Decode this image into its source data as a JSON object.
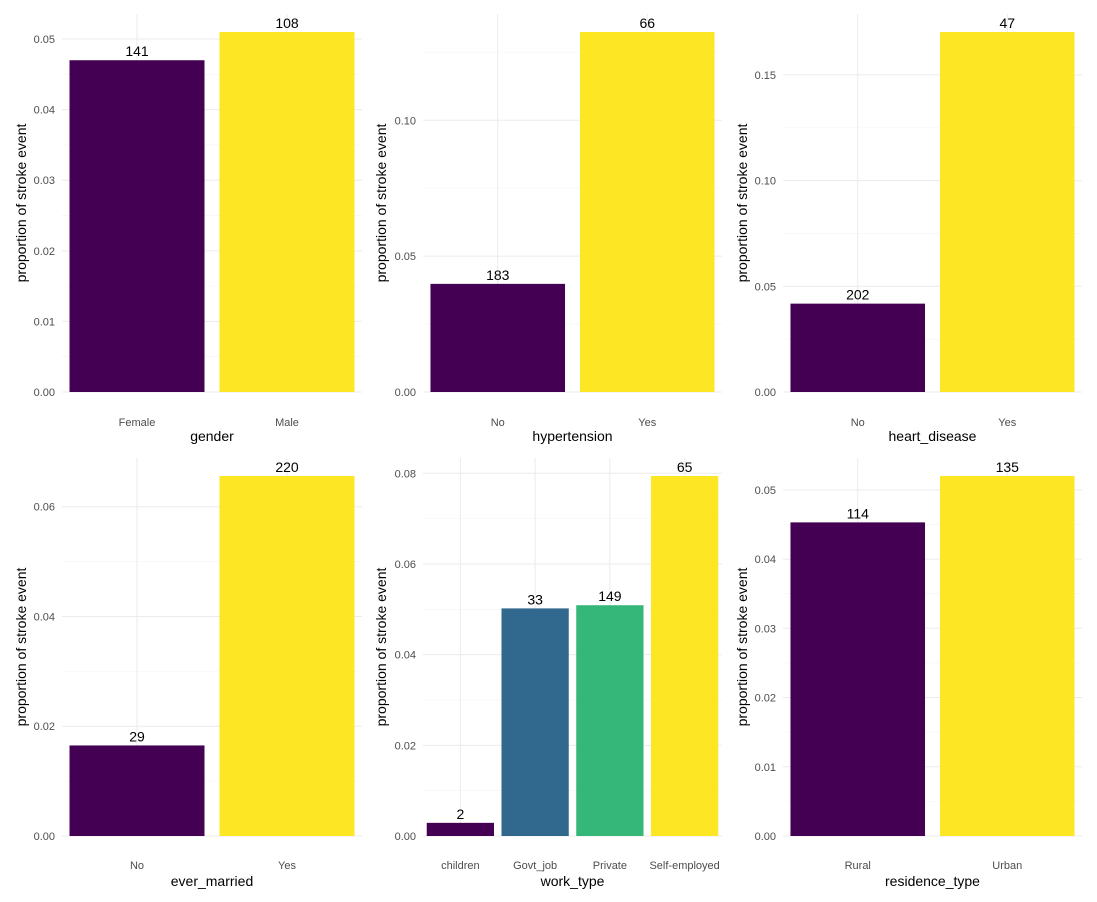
{
  "chart_data": [
    {
      "type": "bar",
      "xlabel": "gender",
      "ylabel": "proportion of stroke event",
      "categories": [
        "Female",
        "Male"
      ],
      "values": [
        0.047,
        0.051
      ],
      "labels": [
        "141",
        "108"
      ],
      "colors": [
        "#440154",
        "#FDE725"
      ],
      "ylim": [
        0,
        0.051
      ],
      "yticks": [
        0,
        0.01,
        0.02,
        0.03,
        0.04,
        0.05
      ],
      "ytick_labels": [
        "0.00",
        "0.01",
        "0.02",
        "0.03",
        "0.04",
        "0.05"
      ],
      "grid": true
    },
    {
      "type": "bar",
      "xlabel": "hypertension",
      "ylabel": "proportion of stroke event",
      "categories": [
        "No",
        "Yes"
      ],
      "values": [
        0.0398,
        0.1325
      ],
      "labels": [
        "183",
        "66"
      ],
      "colors": [
        "#440154",
        "#FDE725"
      ],
      "ylim": [
        0,
        0.1325
      ],
      "yticks": [
        0,
        0.05,
        0.1
      ],
      "ytick_labels": [
        "0.00",
        "0.05",
        "0.10"
      ],
      "grid": true
    },
    {
      "type": "bar",
      "xlabel": "heart_disease",
      "ylabel": "proportion of stroke event",
      "categories": [
        "No",
        "Yes"
      ],
      "values": [
        0.0418,
        0.1703
      ],
      "labels": [
        "202",
        "47"
      ],
      "colors": [
        "#440154",
        "#FDE725"
      ],
      "ylim": [
        0,
        0.1703
      ],
      "yticks": [
        0,
        0.05,
        0.1,
        0.15
      ],
      "ytick_labels": [
        "0.00",
        "0.05",
        "0.10",
        "0.15"
      ],
      "grid": true
    },
    {
      "type": "bar",
      "xlabel": "ever_married",
      "ylabel": "proportion of stroke event",
      "categories": [
        "No",
        "Yes"
      ],
      "values": [
        0.0165,
        0.0656
      ],
      "labels": [
        "29",
        "220"
      ],
      "colors": [
        "#440154",
        "#FDE725"
      ],
      "ylim": [
        0,
        0.0656
      ],
      "yticks": [
        0,
        0.02,
        0.04,
        0.06
      ],
      "ytick_labels": [
        "0.00",
        "0.02",
        "0.04",
        "0.06"
      ],
      "grid": true
    },
    {
      "type": "bar",
      "xlabel": "work_type",
      "ylabel": "proportion of stroke event",
      "categories": [
        "children",
        "Govt_job",
        "Private",
        "Self-employed"
      ],
      "values": [
        0.0029,
        0.0502,
        0.0509,
        0.0794
      ],
      "labels": [
        "2",
        "33",
        "149",
        "65"
      ],
      "colors": [
        "#440154",
        "#31688E",
        "#35B779",
        "#FDE725"
      ],
      "ylim": [
        0,
        0.0794
      ],
      "yticks": [
        0,
        0.02,
        0.04,
        0.06,
        0.08
      ],
      "ytick_labels": [
        "0.00",
        "0.02",
        "0.04",
        "0.06",
        "0.08"
      ],
      "grid": true
    },
    {
      "type": "bar",
      "xlabel": "residence_type",
      "ylabel": "proportion of stroke event",
      "categories": [
        "Rural",
        "Urban"
      ],
      "values": [
        0.0453,
        0.052
      ],
      "labels": [
        "114",
        "135"
      ],
      "colors": [
        "#440154",
        "#FDE725"
      ],
      "ylim": [
        0,
        0.052
      ],
      "yticks": [
        0,
        0.01,
        0.02,
        0.03,
        0.04,
        0.05
      ],
      "ytick_labels": [
        "0.00",
        "0.01",
        "0.02",
        "0.03",
        "0.04",
        "0.05"
      ],
      "grid": true
    }
  ]
}
